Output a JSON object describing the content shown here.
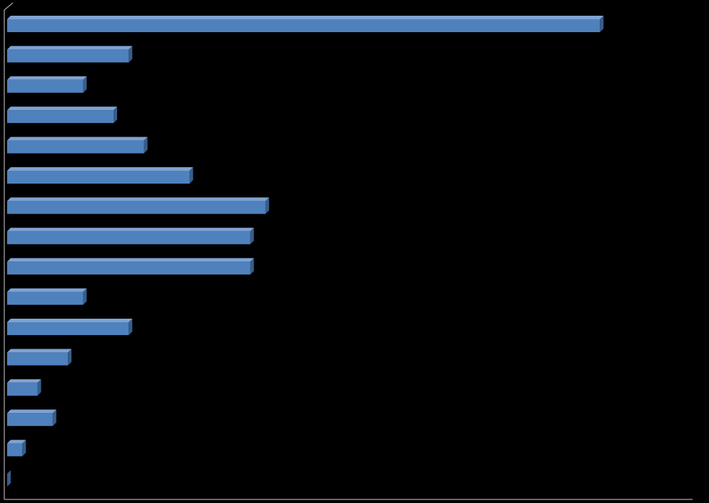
{
  "chart_data": {
    "type": "bar",
    "orientation": "horizontal",
    "categories": [
      null,
      null,
      null,
      null,
      null,
      null,
      null,
      null,
      null,
      null,
      null,
      null,
      null,
      null,
      null,
      null
    ],
    "values": [
      39,
      8,
      5,
      7,
      9,
      12,
      17,
      16,
      16,
      5,
      8,
      4,
      2,
      3,
      1,
      0
    ],
    "color": "#4f81bd",
    "xlim": [
      0,
      45
    ]
  }
}
